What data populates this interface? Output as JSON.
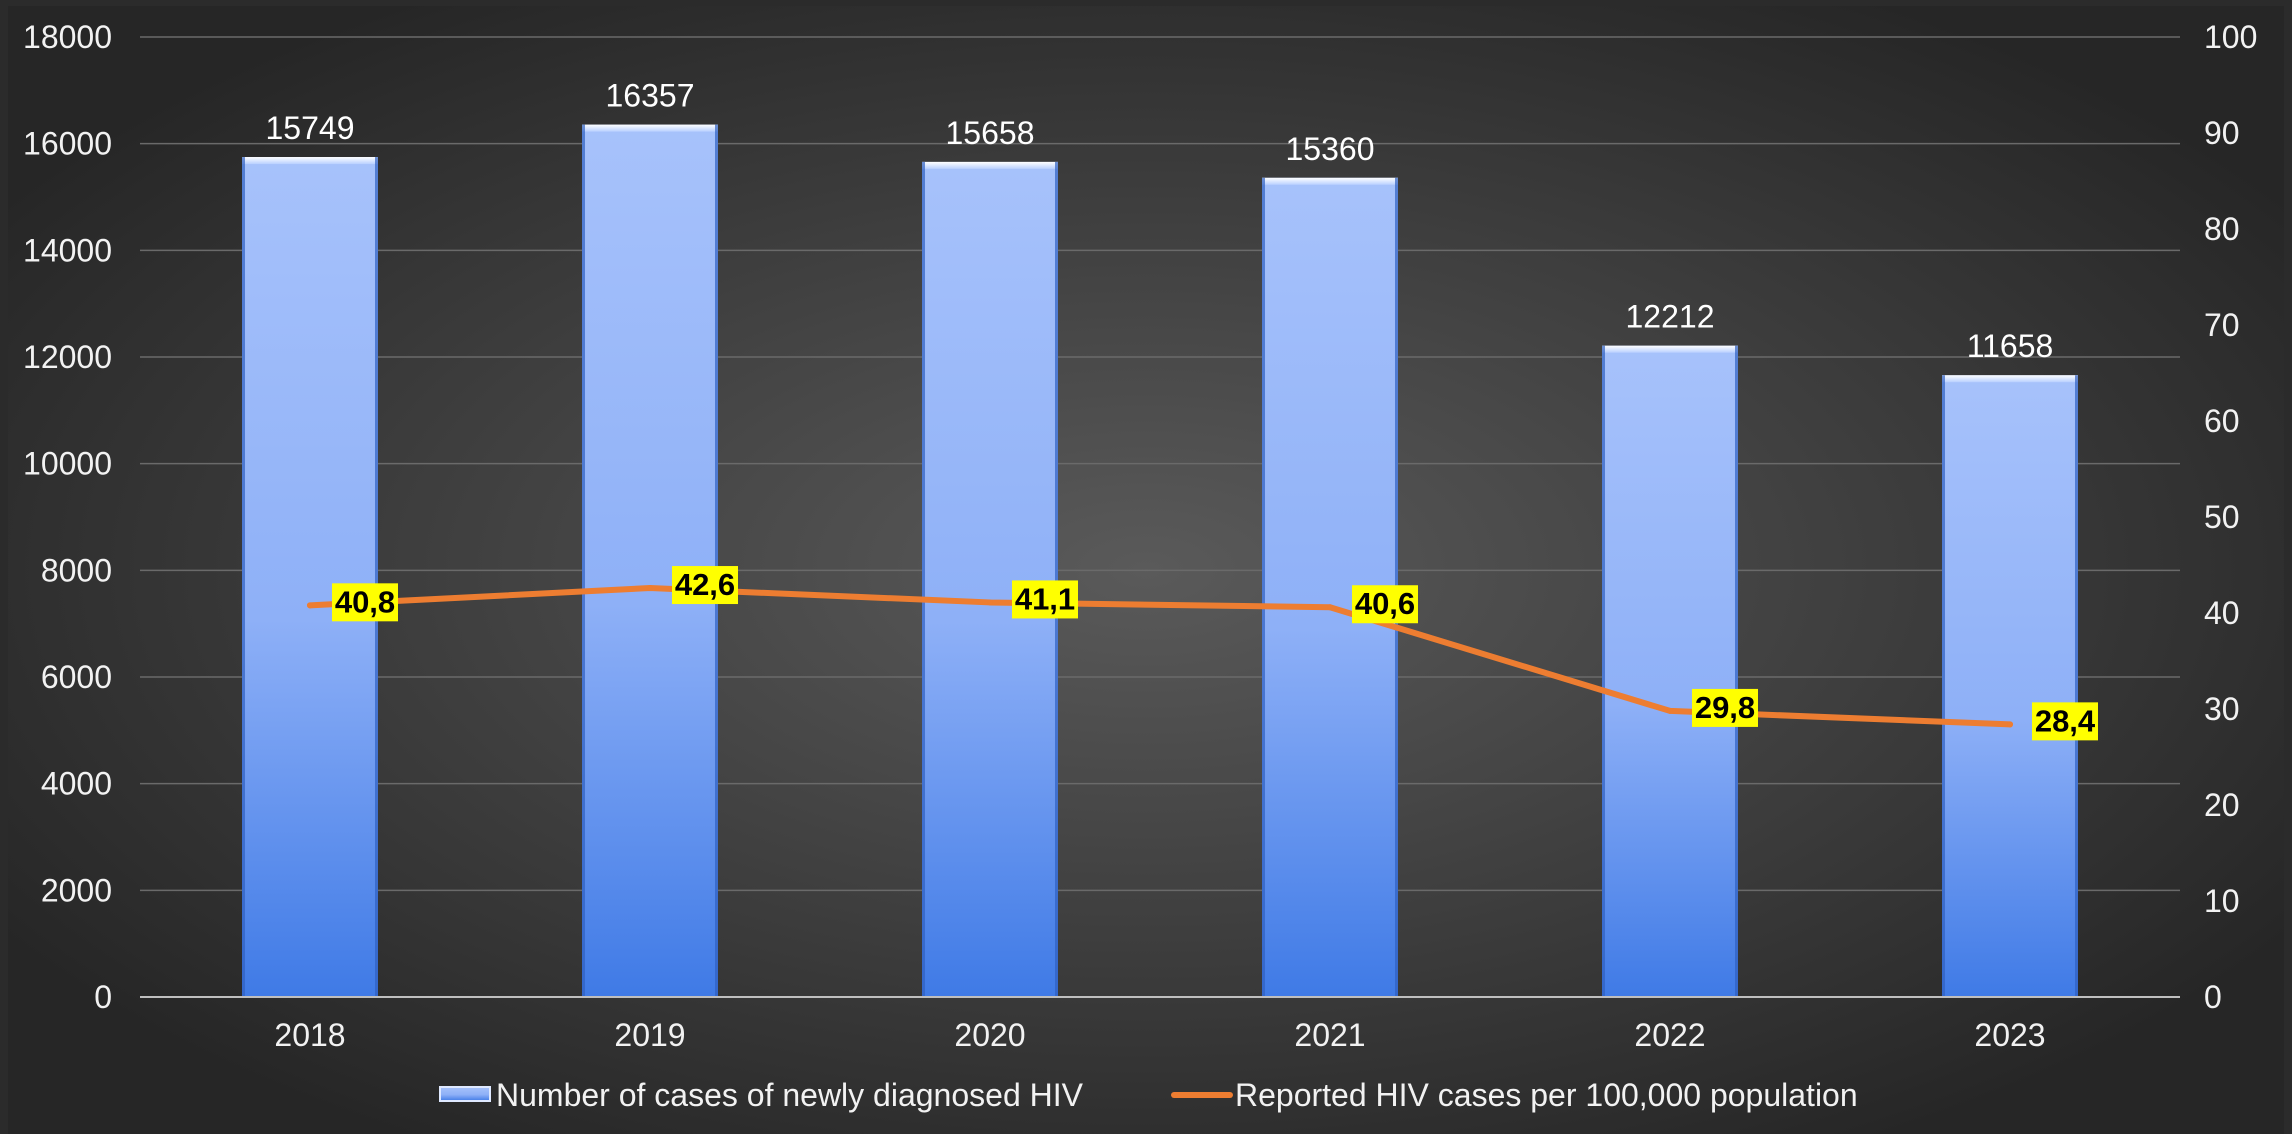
{
  "chart_data": {
    "type": "bar",
    "categories": [
      "2018",
      "2019",
      "2020",
      "2021",
      "2022",
      "2023"
    ],
    "series": [
      {
        "name": "Number of cases of newly diagnosed HIV",
        "type": "bar",
        "axis": "left",
        "values": [
          15749,
          16357,
          15658,
          15360,
          12212,
          11658
        ],
        "labels": [
          "15749",
          "16357",
          "15658",
          "15360",
          "12212",
          "11658"
        ],
        "color": "#6f9cf2"
      },
      {
        "name": "Reported HIV cases per 100,000 population",
        "type": "line",
        "axis": "right",
        "values": [
          40.8,
          42.6,
          41.1,
          40.6,
          29.8,
          28.4
        ],
        "labels": [
          "40,8",
          "42,6",
          "41,1",
          "40,6",
          "29,8",
          "28,4"
        ],
        "color": "#ed7d31",
        "label_background": "#ffff00"
      }
    ],
    "y_left": {
      "ylim": [
        0,
        18000
      ],
      "ticks": [
        "0",
        "2000",
        "4000",
        "6000",
        "8000",
        "10000",
        "12000",
        "14000",
        "16000",
        "18000"
      ]
    },
    "y_right": {
      "ylim": [
        0,
        100
      ],
      "ticks": [
        "0",
        "10",
        "20",
        "30",
        "40",
        "50",
        "60",
        "70",
        "80",
        "90",
        "100"
      ]
    },
    "grid": true,
    "legend_position": "bottom",
    "background": "#2b2b2b"
  }
}
